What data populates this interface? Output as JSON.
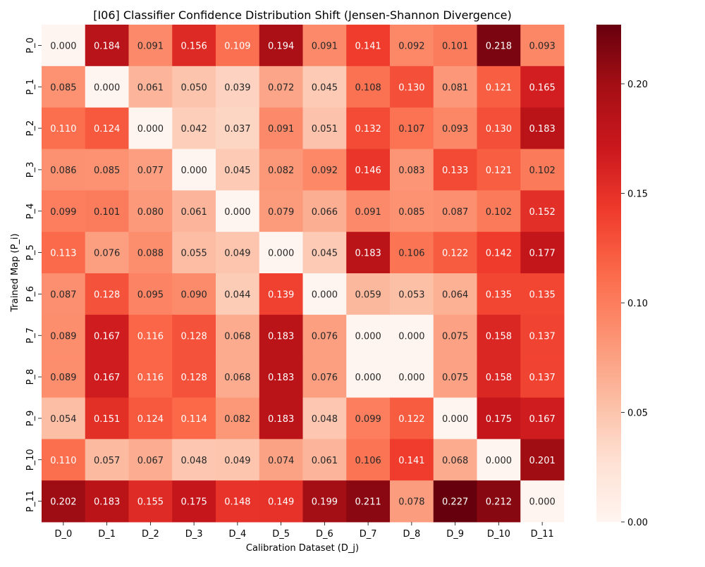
{
  "chart_data": {
    "type": "heatmap",
    "title": "[I06] Classifier Confidence Distribution Shift (Jensen-Shannon Divergence)",
    "xlabel": "Calibration Dataset (D_j)",
    "ylabel": "Trained Map (P_i)",
    "x_categories": [
      "D_0",
      "D_1",
      "D_2",
      "D_3",
      "D_4",
      "D_5",
      "D_6",
      "D_7",
      "D_8",
      "D_9",
      "D_10",
      "D_11"
    ],
    "y_categories": [
      "P_0",
      "P_1",
      "P_2",
      "P_3",
      "P_4",
      "P_5",
      "P_6",
      "P_7",
      "P_8",
      "P_9",
      "P_10",
      "P_11"
    ],
    "values": [
      [
        0.0,
        0.184,
        0.091,
        0.156,
        0.109,
        0.194,
        0.091,
        0.141,
        0.092,
        0.101,
        0.218,
        0.093
      ],
      [
        0.085,
        0.0,
        0.061,
        0.05,
        0.039,
        0.072,
        0.045,
        0.108,
        0.13,
        0.081,
        0.121,
        0.165
      ],
      [
        0.11,
        0.124,
        0.0,
        0.042,
        0.037,
        0.091,
        0.051,
        0.132,
        0.107,
        0.093,
        0.13,
        0.183
      ],
      [
        0.086,
        0.085,
        0.077,
        0.0,
        0.045,
        0.082,
        0.092,
        0.146,
        0.083,
        0.133,
        0.121,
        0.102
      ],
      [
        0.099,
        0.101,
        0.08,
        0.061,
        0.0,
        0.079,
        0.066,
        0.091,
        0.085,
        0.087,
        0.102,
        0.152
      ],
      [
        0.113,
        0.076,
        0.088,
        0.055,
        0.049,
        0.0,
        0.045,
        0.183,
        0.106,
        0.122,
        0.142,
        0.177
      ],
      [
        0.087,
        0.128,
        0.095,
        0.09,
        0.044,
        0.139,
        0.0,
        0.059,
        0.053,
        0.064,
        0.135,
        0.135
      ],
      [
        0.089,
        0.167,
        0.116,
        0.128,
        0.068,
        0.183,
        0.076,
        0.0,
        0.0,
        0.075,
        0.158,
        0.137
      ],
      [
        0.089,
        0.167,
        0.116,
        0.128,
        0.068,
        0.183,
        0.076,
        0.0,
        0.0,
        0.075,
        0.158,
        0.137
      ],
      [
        0.054,
        0.151,
        0.124,
        0.114,
        0.082,
        0.183,
        0.048,
        0.099,
        0.122,
        0.0,
        0.175,
        0.167
      ],
      [
        0.11,
        0.057,
        0.067,
        0.048,
        0.049,
        0.074,
        0.061,
        0.106,
        0.141,
        0.068,
        0.0,
        0.201
      ],
      [
        0.202,
        0.183,
        0.155,
        0.175,
        0.148,
        0.149,
        0.199,
        0.211,
        0.078,
        0.227,
        0.212,
        0.0
      ]
    ],
    "value_format_decimals": 3,
    "colormap": "Reds",
    "vmin": 0.0,
    "vmax": 0.227,
    "colorbar": {
      "ticks": [
        0.0,
        0.05,
        0.1,
        0.15,
        0.2
      ],
      "tick_labels": [
        "0.00",
        "0.05",
        "0.10",
        "0.15",
        "0.20"
      ]
    },
    "grid": false
  }
}
